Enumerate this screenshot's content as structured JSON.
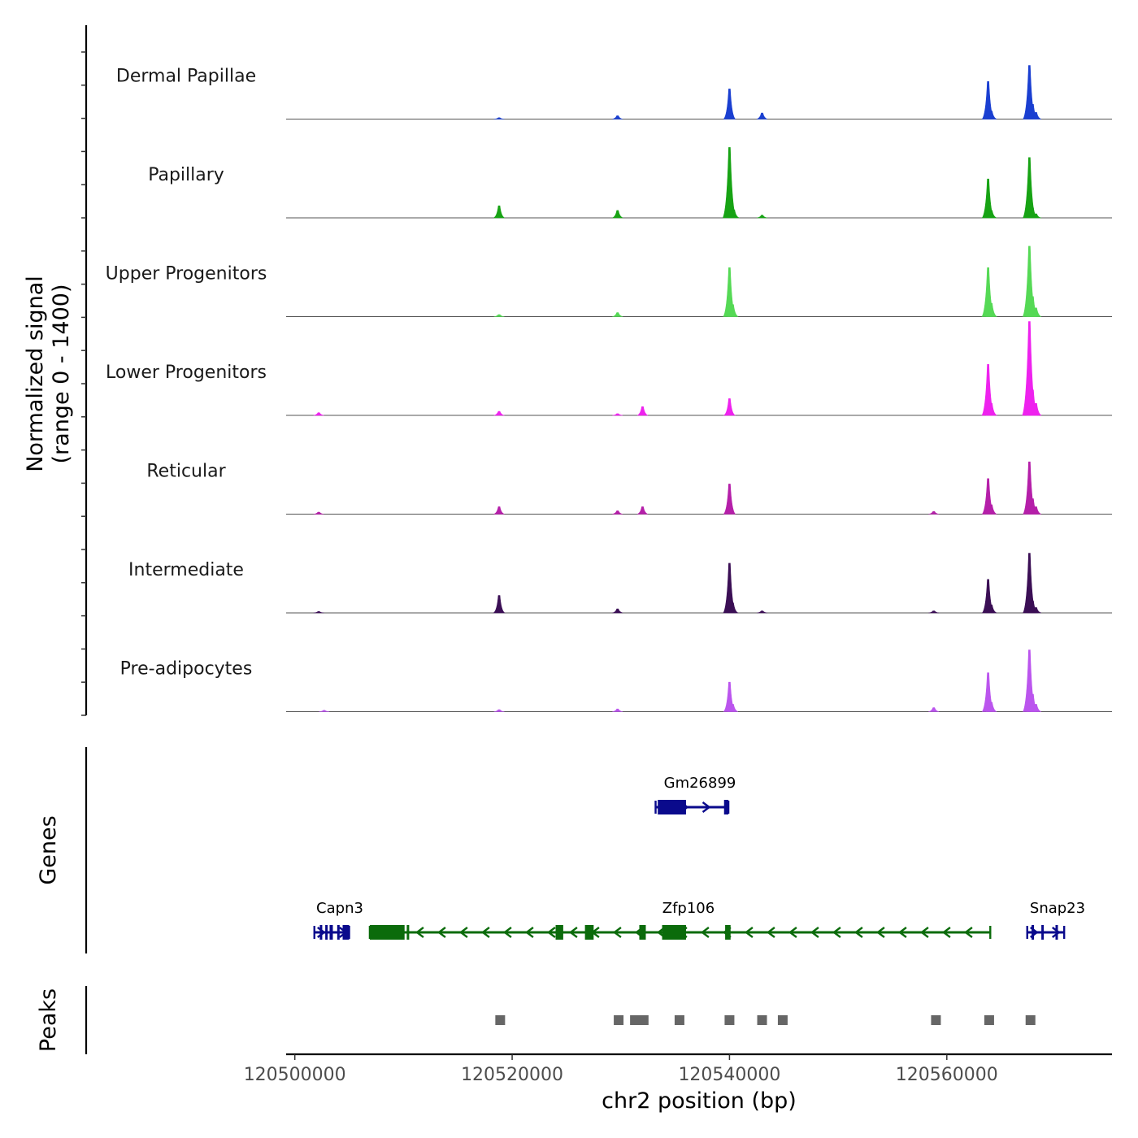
{
  "chart_data": {
    "type": "area",
    "title": "",
    "xlabel": "chr2 position (bp)",
    "ylabel_line1": "Normalized signal",
    "ylabel_line2": "(range 0 - 1400)",
    "genes_label": "Genes",
    "peaks_label": "Peaks",
    "chrom": "chr2",
    "xlim": [
      120499200,
      120575200
    ],
    "ylim": [
      0,
      1400
    ],
    "x_ticks": [
      120500000,
      120520000,
      120540000,
      120560000
    ],
    "x_tick_labels": [
      "120500000",
      "120520000",
      "120540000",
      "120560000"
    ],
    "tracks": [
      {
        "name": "Dermal Papillae",
        "color": "#1a3fd1",
        "peaks": [
          [
            120518800,
            20
          ],
          [
            120529700,
            50
          ],
          [
            120540000,
            450
          ],
          [
            120543000,
            90
          ],
          [
            120563800,
            560
          ],
          [
            120564100,
            120
          ],
          [
            120567600,
            800
          ],
          [
            120567900,
            220
          ],
          [
            120568200,
            100
          ]
        ]
      },
      {
        "name": "Papillary",
        "color": "#17a314",
        "peaks": [
          [
            120518800,
            180
          ],
          [
            120529700,
            110
          ],
          [
            120540000,
            1050
          ],
          [
            120540400,
            120
          ],
          [
            120543000,
            40
          ],
          [
            120563800,
            580
          ],
          [
            120564100,
            110
          ],
          [
            120567600,
            900
          ],
          [
            120567900,
            150
          ],
          [
            120568200,
            60
          ]
        ]
      },
      {
        "name": "Upper Progenitors",
        "color": "#55d955",
        "peaks": [
          [
            120518800,
            30
          ],
          [
            120529700,
            60
          ],
          [
            120540000,
            730
          ],
          [
            120540300,
            180
          ],
          [
            120563800,
            730
          ],
          [
            120564100,
            200
          ],
          [
            120567600,
            1050
          ],
          [
            120567900,
            300
          ],
          [
            120568200,
            130
          ]
        ]
      },
      {
        "name": "Lower Progenitors",
        "color": "#ee22ee",
        "peaks": [
          [
            120502200,
            40
          ],
          [
            120518800,
            60
          ],
          [
            120529700,
            25
          ],
          [
            120532000,
            130
          ],
          [
            120540000,
            250
          ],
          [
            120563800,
            760
          ],
          [
            120564100,
            180
          ],
          [
            120567600,
            1400
          ],
          [
            120567900,
            380
          ],
          [
            120568200,
            180
          ]
        ]
      },
      {
        "name": "Reticular",
        "color": "#b51fa9",
        "peaks": [
          [
            120502200,
            30
          ],
          [
            120518800,
            110
          ],
          [
            120529700,
            50
          ],
          [
            120532000,
            110
          ],
          [
            120540000,
            450
          ],
          [
            120558800,
            40
          ],
          [
            120563800,
            530
          ],
          [
            120564100,
            140
          ],
          [
            120567600,
            780
          ],
          [
            120567900,
            230
          ],
          [
            120568200,
            110
          ]
        ]
      },
      {
        "name": "Intermediate",
        "color": "#3b0f55",
        "peaks": [
          [
            120502200,
            20
          ],
          [
            120518800,
            260
          ],
          [
            120529700,
            60
          ],
          [
            120540000,
            740
          ],
          [
            120540300,
            150
          ],
          [
            120543000,
            30
          ],
          [
            120558800,
            30
          ],
          [
            120563800,
            500
          ],
          [
            120564100,
            120
          ],
          [
            120567600,
            890
          ],
          [
            120567900,
            180
          ],
          [
            120568200,
            80
          ]
        ]
      },
      {
        "name": "Pre-adipocytes",
        "color": "#bb55ee",
        "peaks": [
          [
            120502700,
            20
          ],
          [
            120518800,
            30
          ],
          [
            120529700,
            40
          ],
          [
            120540000,
            440
          ],
          [
            120540300,
            110
          ],
          [
            120558800,
            60
          ],
          [
            120563800,
            580
          ],
          [
            120564100,
            140
          ],
          [
            120567600,
            920
          ],
          [
            120567900,
            260
          ],
          [
            120568200,
            110
          ]
        ]
      }
    ],
    "genes": [
      {
        "name": "Gm26899",
        "strand": "+",
        "color": "#0a0a8c",
        "start": 120533200,
        "end": 120539900,
        "row": 1,
        "exons": [
          [
            120533400,
            120536000
          ],
          [
            120539500,
            120539900
          ]
        ]
      },
      {
        "name": "Capn3",
        "strand": "+",
        "color": "#0a0a8c",
        "start": 120501800,
        "end": 120505000,
        "row": 2,
        "exons": [
          [
            120502300,
            120502500
          ],
          [
            120502800,
            120503000
          ],
          [
            120503200,
            120503500
          ],
          [
            120503900,
            120504100
          ],
          [
            120504400,
            120505000
          ]
        ]
      },
      {
        "name": "Zfp106",
        "strand": "-",
        "color": "#0b6b0b",
        "start": 120506900,
        "end": 120564000,
        "row": 2,
        "exons": [
          [
            120506900,
            120510100
          ],
          [
            120510300,
            120510500
          ],
          [
            120524000,
            120524700
          ],
          [
            120526700,
            120527500
          ],
          [
            120531700,
            120532300
          ],
          [
            120533800,
            120536000
          ],
          [
            120539600,
            120540100
          ]
        ]
      },
      {
        "name": "Snap23",
        "strand": "+",
        "color": "#0a0a8c",
        "start": 120567400,
        "end": 120570800,
        "row": 2,
        "exons": [
          [
            120567800,
            120568000
          ],
          [
            120568700,
            120568900
          ],
          [
            120570000,
            120570200
          ]
        ]
      }
    ],
    "peak_regions": [
      [
        120518700,
        120519100
      ],
      [
        120529600,
        120530000
      ],
      [
        120531100,
        120531500
      ],
      [
        120531900,
        120532300
      ],
      [
        120535200,
        120535600
      ],
      [
        120539800,
        120540200
      ],
      [
        120542800,
        120543200
      ],
      [
        120544700,
        120545100
      ],
      [
        120558800,
        120559200
      ],
      [
        120563700,
        120564100
      ],
      [
        120567500,
        120567900
      ]
    ]
  }
}
